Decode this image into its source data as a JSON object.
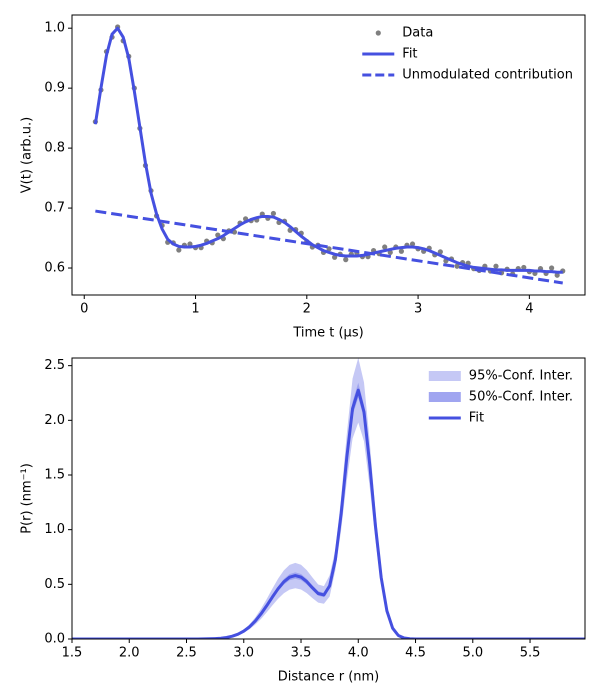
{
  "chart_data": [
    {
      "type": "line",
      "xlabel": "Time t (μs)",
      "ylabel": "V(t) (arb.u.)",
      "xlim": [
        -0.11,
        4.5
      ],
      "ylim": [
        0.555,
        1.022
      ],
      "xticks": [
        0,
        1,
        2,
        3,
        4
      ],
      "yticks": [
        0.6,
        0.7,
        0.8,
        0.9,
        {
          "value": 1.0,
          "label": "1.0"
        }
      ],
      "legend": "upper right",
      "series": [
        {
          "name": "Data",
          "marker": "o",
          "color": "#7f7f7f",
          "x": [
            0.1,
            0.15,
            0.2,
            0.25,
            0.3,
            0.35,
            0.4,
            0.45,
            0.5,
            0.55,
            0.6,
            0.65,
            0.7,
            0.75,
            0.8,
            0.85,
            0.9,
            0.95,
            1.0,
            1.05,
            1.1,
            1.15,
            1.2,
            1.25,
            1.3,
            1.35,
            1.4,
            1.45,
            1.5,
            1.55,
            1.6,
            1.65,
            1.7,
            1.75,
            1.8,
            1.85,
            1.9,
            1.95,
            2.0,
            2.05,
            2.1,
            2.15,
            2.2,
            2.25,
            2.3,
            2.35,
            2.4,
            2.45,
            2.5,
            2.55,
            2.6,
            2.65,
            2.7,
            2.75,
            2.8,
            2.85,
            2.9,
            2.95,
            3.0,
            3.05,
            3.1,
            3.15,
            3.2,
            3.25,
            3.3,
            3.35,
            3.4,
            3.45,
            3.5,
            3.55,
            3.6,
            3.65,
            3.7,
            3.75,
            3.8,
            3.85,
            3.9,
            3.95,
            4.0,
            4.05,
            4.1,
            4.15,
            4.2,
            4.25,
            4.3
          ],
          "values": [
            0.844,
            0.897,
            0.961,
            0.985,
            1.002,
            0.979,
            0.953,
            0.9,
            0.833,
            0.771,
            0.729,
            0.687,
            0.671,
            0.643,
            0.642,
            0.63,
            0.638,
            0.64,
            0.634,
            0.634,
            0.645,
            0.642,
            0.655,
            0.649,
            0.662,
            0.66,
            0.675,
            0.682,
            0.679,
            0.68,
            0.69,
            0.683,
            0.691,
            0.676,
            0.678,
            0.663,
            0.664,
            0.658,
            0.644,
            0.635,
            0.638,
            0.626,
            0.632,
            0.618,
            0.623,
            0.614,
            0.623,
            0.625,
            0.619,
            0.619,
            0.629,
            0.624,
            0.635,
            0.626,
            0.635,
            0.628,
            0.638,
            0.64,
            0.632,
            0.628,
            0.633,
            0.622,
            0.627,
            0.612,
            0.615,
            0.603,
            0.609,
            0.608,
            0.599,
            0.596,
            0.603,
            0.595,
            0.603,
            0.592,
            0.598,
            0.59,
            0.599,
            0.601,
            0.594,
            0.591,
            0.599,
            0.591,
            0.6,
            0.588,
            0.595
          ]
        },
        {
          "name": "Fit",
          "linestyle": "solid",
          "color": "#4550e0",
          "x": [
            0.1,
            0.15,
            0.2,
            0.25,
            0.3,
            0.35,
            0.4,
            0.45,
            0.5,
            0.55,
            0.6,
            0.65,
            0.7,
            0.75,
            0.8,
            0.85,
            0.9,
            0.95,
            1.0,
            1.05,
            1.1,
            1.15,
            1.2,
            1.25,
            1.3,
            1.35,
            1.4,
            1.45,
            1.5,
            1.55,
            1.6,
            1.65,
            1.7,
            1.75,
            1.8,
            1.85,
            1.9,
            1.95,
            2.0,
            2.05,
            2.1,
            2.15,
            2.2,
            2.25,
            2.3,
            2.35,
            2.4,
            2.45,
            2.5,
            2.55,
            2.6,
            2.65,
            2.7,
            2.75,
            2.8,
            2.85,
            2.9,
            2.95,
            3.0,
            3.05,
            3.1,
            3.15,
            3.2,
            3.25,
            3.3,
            3.35,
            3.4,
            3.45,
            3.5,
            3.55,
            3.6,
            3.65,
            3.7,
            3.75,
            3.8,
            3.85,
            3.9,
            3.95,
            4.0,
            4.05,
            4.1,
            4.15,
            4.2,
            4.25,
            4.3
          ],
          "values": [
            0.84,
            0.9,
            0.955,
            0.99,
            1.0,
            0.985,
            0.95,
            0.895,
            0.835,
            0.775,
            0.725,
            0.69,
            0.665,
            0.648,
            0.64,
            0.636,
            0.635,
            0.635,
            0.636,
            0.638,
            0.641,
            0.645,
            0.649,
            0.654,
            0.66,
            0.666,
            0.672,
            0.677,
            0.681,
            0.684,
            0.686,
            0.686,
            0.685,
            0.681,
            0.676,
            0.669,
            0.661,
            0.653,
            0.646,
            0.639,
            0.634,
            0.629,
            0.626,
            0.623,
            0.621,
            0.62,
            0.62,
            0.62,
            0.621,
            0.623,
            0.625,
            0.627,
            0.629,
            0.631,
            0.633,
            0.634,
            0.635,
            0.635,
            0.634,
            0.632,
            0.629,
            0.625,
            0.621,
            0.617,
            0.613,
            0.609,
            0.606,
            0.603,
            0.601,
            0.6,
            0.599,
            0.598,
            0.597,
            0.597,
            0.596,
            0.596,
            0.596,
            0.596,
            0.596,
            0.595,
            0.595,
            0.594,
            0.594,
            0.593,
            0.593
          ]
        },
        {
          "name": "Unmodulated contribution",
          "linestyle": "dashed",
          "color": "#4550e0",
          "x": [
            0.1,
            4.3
          ],
          "values": [
            0.695,
            0.575
          ]
        }
      ]
    },
    {
      "type": "line",
      "xlabel": "Distance r (nm)",
      "ylabel": "P(r) (nm⁻¹)",
      "xlim": [
        1.5,
        5.98
      ],
      "ylim": [
        0,
        2.57
      ],
      "xticks": [
        1.5,
        {
          "value": 2,
          "label": "2.0"
        },
        2.5,
        {
          "value": 3,
          "label": "3.0"
        },
        3.5,
        {
          "value": 4,
          "label": "4.0"
        },
        4.5,
        {
          "value": 5,
          "label": "5.0"
        },
        5.5
      ],
      "yticks": [
        {
          "value": 0,
          "label": "0.0"
        },
        0.5,
        {
          "value": 1,
          "label": "1.0"
        },
        1.5,
        {
          "value": 2,
          "label": "2.0"
        },
        2.5
      ],
      "legend": "upper right",
      "x": [
        1.5,
        2.0,
        2.5,
        2.55,
        2.6,
        2.65,
        2.7,
        2.75,
        2.8,
        2.85,
        2.9,
        2.95,
        3.0,
        3.05,
        3.1,
        3.15,
        3.2,
        3.25,
        3.3,
        3.35,
        3.4,
        3.45,
        3.5,
        3.55,
        3.6,
        3.65,
        3.7,
        3.75,
        3.8,
        3.85,
        3.9,
        3.95,
        4.0,
        4.05,
        4.1,
        4.15,
        4.2,
        4.25,
        4.3,
        4.35,
        4.4,
        4.45,
        4.5,
        5.0,
        5.98
      ],
      "series": [
        {
          "name": "Fit",
          "linestyle": "solid",
          "color": "#4550e0",
          "values": [
            0,
            0,
            0,
            0,
            0,
            0.001,
            0.002,
            0.004,
            0.007,
            0.014,
            0.026,
            0.044,
            0.072,
            0.111,
            0.164,
            0.229,
            0.304,
            0.384,
            0.46,
            0.523,
            0.565,
            0.58,
            0.566,
            0.525,
            0.468,
            0.416,
            0.403,
            0.486,
            0.725,
            1.141,
            1.662,
            2.107,
            2.276,
            2.077,
            1.597,
            1.034,
            0.563,
            0.257,
            0.099,
            0.032,
            0.009,
            0.002,
            0,
            0,
            0
          ]
        }
      ],
      "bands": [
        {
          "name": "95%-Conf. Inter.",
          "color": "#c5c8f5",
          "upper": [
            0,
            0,
            0,
            0,
            0,
            0.001,
            0.002,
            0.005,
            0.008,
            0.017,
            0.031,
            0.053,
            0.086,
            0.133,
            0.197,
            0.275,
            0.365,
            0.461,
            0.552,
            0.628,
            0.678,
            0.696,
            0.679,
            0.63,
            0.562,
            0.499,
            0.484,
            0.583,
            0.819,
            1.289,
            1.878,
            2.381,
            2.572,
            2.347,
            1.805,
            1.168,
            0.636,
            0.29,
            0.112,
            0.036,
            0.01,
            0.002,
            0,
            0,
            0
          ],
          "lower": [
            0,
            0,
            0,
            0,
            0,
            0.001,
            0.002,
            0.003,
            0.006,
            0.011,
            0.021,
            0.035,
            0.058,
            0.089,
            0.131,
            0.183,
            0.243,
            0.307,
            0.368,
            0.418,
            0.452,
            0.464,
            0.453,
            0.42,
            0.374,
            0.333,
            0.322,
            0.389,
            0.631,
            0.993,
            1.446,
            1.833,
            1.98,
            1.807,
            1.389,
            0.9,
            0.49,
            0.224,
            0.086,
            0.028,
            0.008,
            0.002,
            0,
            0,
            0
          ]
        },
        {
          "name": "50%-Conf. Inter.",
          "color": "#a0a5f0",
          "upper": [
            0,
            0,
            0,
            0,
            0,
            0.001,
            0.002,
            0.004,
            0.007,
            0.015,
            0.027,
            0.046,
            0.076,
            0.117,
            0.172,
            0.24,
            0.319,
            0.403,
            0.483,
            0.549,
            0.593,
            0.609,
            0.594,
            0.551,
            0.491,
            0.437,
            0.423,
            0.51,
            0.747,
            1.175,
            1.712,
            2.17,
            2.344,
            2.139,
            1.645,
            1.065,
            0.58,
            0.265,
            0.102,
            0.033,
            0.009,
            0.002,
            0,
            0,
            0
          ],
          "lower": [
            0,
            0,
            0,
            0,
            0,
            0.001,
            0.002,
            0.004,
            0.007,
            0.013,
            0.025,
            0.042,
            0.068,
            0.105,
            0.156,
            0.218,
            0.289,
            0.365,
            0.437,
            0.497,
            0.537,
            0.551,
            0.538,
            0.499,
            0.445,
            0.395,
            0.383,
            0.462,
            0.703,
            1.107,
            1.612,
            2.044,
            2.208,
            2.015,
            1.549,
            1.003,
            0.546,
            0.249,
            0.096,
            0.031,
            0.009,
            0.002,
            0,
            0,
            0
          ]
        }
      ]
    }
  ]
}
